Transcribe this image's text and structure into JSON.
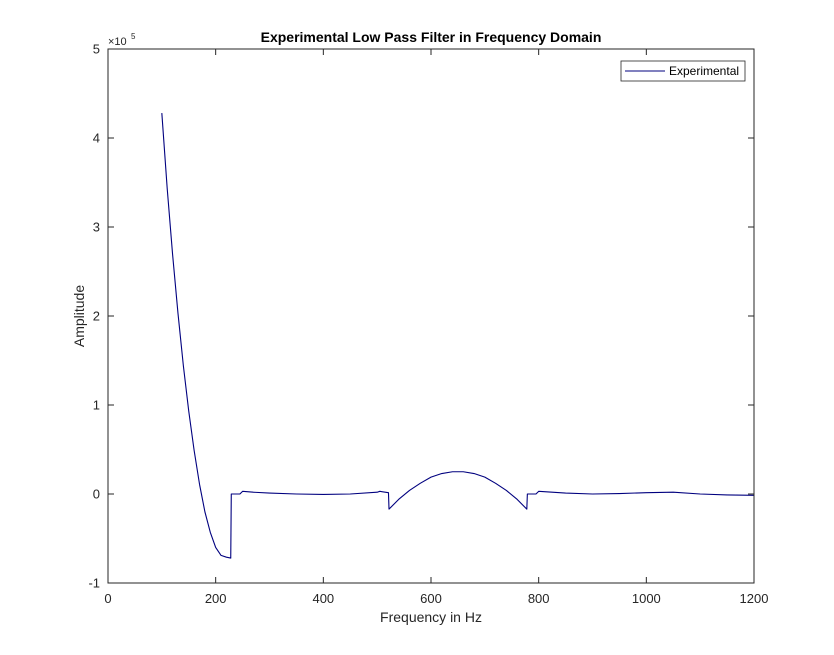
{
  "chart_data": {
    "type": "line",
    "title": "Experimental Low Pass Filter in Frequency Domain",
    "xlabel": "Frequency in Hz",
    "ylabel": "Amplitude",
    "xlim": [
      0,
      1200
    ],
    "ylim": [
      -1,
      5
    ],
    "y_multiplier_base": "×10",
    "y_multiplier_exp": "5",
    "xticks": [
      0,
      200,
      400,
      600,
      800,
      1000,
      1200
    ],
    "yticks": [
      -1,
      0,
      1,
      2,
      3,
      4,
      5
    ],
    "xtick_labels": [
      "0",
      "200",
      "400",
      "600",
      "800",
      "1000",
      "1200"
    ],
    "ytick_labels": [
      "-1",
      "0",
      "1",
      "2",
      "3",
      "4",
      "5"
    ],
    "grid": false,
    "legend_position": "top-right",
    "series": [
      {
        "name": "Experimental",
        "color": "#00007f",
        "x": [
          100,
          110,
          120,
          130,
          140,
          150,
          160,
          170,
          180,
          190,
          200,
          210,
          220,
          228,
          229,
          235,
          245,
          250,
          270,
          300,
          350,
          400,
          450,
          500,
          505,
          521,
          522,
          540,
          560,
          580,
          600,
          620,
          640,
          650,
          660,
          680,
          700,
          720,
          740,
          760,
          778,
          779,
          782,
          795,
          800,
          850,
          900,
          950,
          1000,
          1050,
          1100,
          1150,
          1200
        ],
        "y": [
          4.28,
          3.43,
          2.69,
          2.03,
          1.44,
          0.93,
          0.49,
          0.11,
          -0.2,
          -0.43,
          -0.6,
          -0.69,
          -0.71,
          -0.72,
          0.0,
          0.0,
          0.0,
          0.03,
          0.02,
          0.01,
          0.0,
          -0.005,
          0.0,
          0.02,
          0.03,
          0.015,
          -0.17,
          -0.06,
          0.04,
          0.12,
          0.19,
          0.23,
          0.25,
          0.25,
          0.25,
          0.23,
          0.19,
          0.12,
          0.04,
          -0.06,
          -0.17,
          0.0,
          0.0,
          0.0,
          0.03,
          0.01,
          0.0,
          0.005,
          0.015,
          0.02,
          0.0,
          -0.01,
          -0.015
        ]
      }
    ]
  }
}
